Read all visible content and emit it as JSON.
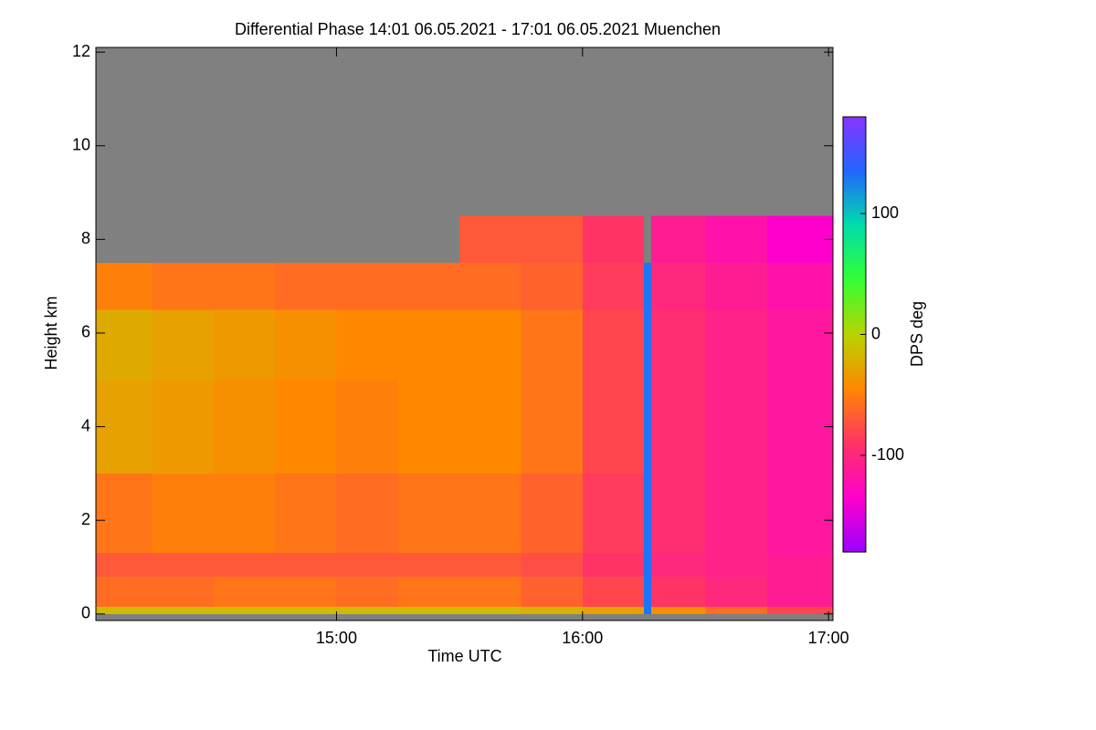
{
  "chart_data": {
    "type": "heatmap",
    "title": "Differential Phase   14:01 06.05.2021 - 17:01 06.05.2021 Muenchen",
    "x_label": "Time UTC",
    "y_label": "Height km",
    "colorbar_label": "DPS deg",
    "xlim": [
      14.022,
      17.018
    ],
    "xticks": [
      {
        "value": 15,
        "label": "15:00"
      },
      {
        "value": 16,
        "label": "16:00"
      },
      {
        "value": 17,
        "label": "17:00"
      }
    ],
    "ylim": [
      -0.14,
      12.1
    ],
    "yticks": [
      0,
      2,
      4,
      6,
      8,
      10,
      12
    ],
    "clim": [
      -180,
      180
    ],
    "cticks": [
      -100,
      0,
      100
    ],
    "colormap": [
      "#9900ff",
      "#ff00cc",
      "#ff3366",
      "#ff8800",
      "#b8d400",
      "#33ff33",
      "#00ddaa",
      "#2266ff",
      "#8833ff"
    ],
    "missing_color": "#808080",
    "x_edges": [
      14.022,
      14.25,
      14.5,
      14.75,
      15,
      15.25,
      15.5,
      15.75,
      16,
      16.25,
      16.28,
      16.5,
      16.75,
      17.018
    ],
    "y_edges": [
      0,
      0.15,
      0.8,
      1.3,
      3,
      5,
      6.5,
      7.5,
      8.5,
      12
    ],
    "z": [
      [
        -15,
        -15,
        -15,
        -15,
        -15,
        -15,
        -15,
        -20,
        -30,
        130,
        -40,
        -60,
        -80
      ],
      [
        -60,
        -60,
        -55,
        -55,
        -60,
        -55,
        -55,
        -65,
        -80,
        130,
        -90,
        -100,
        -110
      ],
      [
        -70,
        -70,
        -70,
        -70,
        -70,
        -70,
        -70,
        -75,
        -90,
        130,
        -100,
        -105,
        -110
      ],
      [
        -55,
        -50,
        -50,
        -55,
        -60,
        -55,
        -55,
        -65,
        -85,
        130,
        -95,
        -105,
        -115
      ],
      [
        -30,
        -35,
        -40,
        -45,
        -50,
        -45,
        -45,
        -55,
        -80,
        130,
        -95,
        -105,
        -115
      ],
      [
        -25,
        -30,
        -35,
        -40,
        -45,
        -45,
        -45,
        -55,
        -80,
        130,
        -95,
        -105,
        -115
      ],
      [
        -50,
        -55,
        -55,
        -60,
        -60,
        -60,
        -60,
        -65,
        -85,
        130,
        -100,
        -110,
        -120
      ],
      [
        null,
        null,
        null,
        null,
        null,
        null,
        -70,
        -70,
        -90,
        null,
        -110,
        -120,
        -135
      ],
      [
        null,
        null,
        null,
        null,
        null,
        null,
        null,
        null,
        null,
        null,
        null,
        null,
        null
      ]
    ]
  }
}
